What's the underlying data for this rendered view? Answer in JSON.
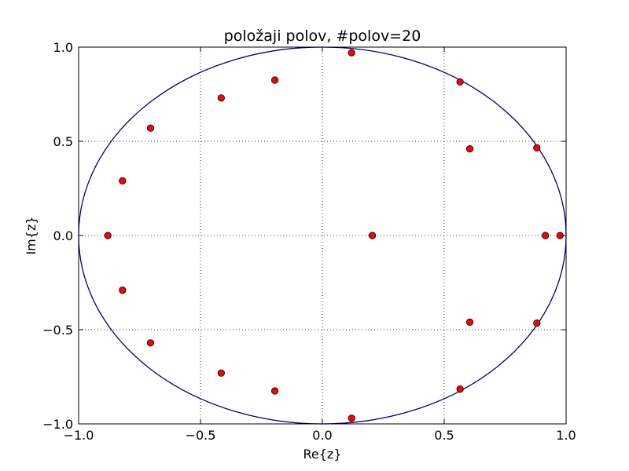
{
  "chart_data": {
    "type": "scatter",
    "title": "položaji polov, #polov=20",
    "xlabel": "Re{z}",
    "ylabel": "Im{z}",
    "xlim": [
      -1.0,
      1.0
    ],
    "ylim": [
      -1.0,
      1.0
    ],
    "xticks": [
      -1.0,
      -0.5,
      0.0,
      0.5,
      1.0
    ],
    "yticks": [
      -1.0,
      -0.5,
      0.0,
      0.5,
      1.0
    ],
    "xtick_labels": [
      "−1.0",
      "−0.5",
      "0.0",
      "0.5",
      "1.0"
    ],
    "ytick_labels": [
      "−1.0",
      "−0.5",
      "0.0",
      "0.5",
      "1.0"
    ],
    "grid": true,
    "unit_circle": true,
    "series": [
      {
        "marker": "circle",
        "color": "#ff0000",
        "edge_color": "#000000",
        "points": [
          {
            "x": 0.12,
            "y": 0.97
          },
          {
            "x": 0.12,
            "y": -0.97
          },
          {
            "x": 0.565,
            "y": 0.815
          },
          {
            "x": 0.565,
            "y": -0.815
          },
          {
            "x": -0.195,
            "y": 0.825
          },
          {
            "x": -0.195,
            "y": -0.825
          },
          {
            "x": -0.415,
            "y": 0.73
          },
          {
            "x": -0.415,
            "y": -0.73
          },
          {
            "x": -0.705,
            "y": 0.57
          },
          {
            "x": -0.705,
            "y": -0.57
          },
          {
            "x": -0.82,
            "y": 0.29
          },
          {
            "x": -0.82,
            "y": -0.29
          },
          {
            "x": -0.88,
            "y": 0.0
          },
          {
            "x": 0.605,
            "y": 0.46
          },
          {
            "x": 0.605,
            "y": -0.46
          },
          {
            "x": 0.88,
            "y": 0.465
          },
          {
            "x": 0.88,
            "y": -0.465
          },
          {
            "x": 0.205,
            "y": 0.0
          },
          {
            "x": 0.915,
            "y": 0.0
          },
          {
            "x": 0.975,
            "y": 0.0
          }
        ]
      }
    ]
  }
}
